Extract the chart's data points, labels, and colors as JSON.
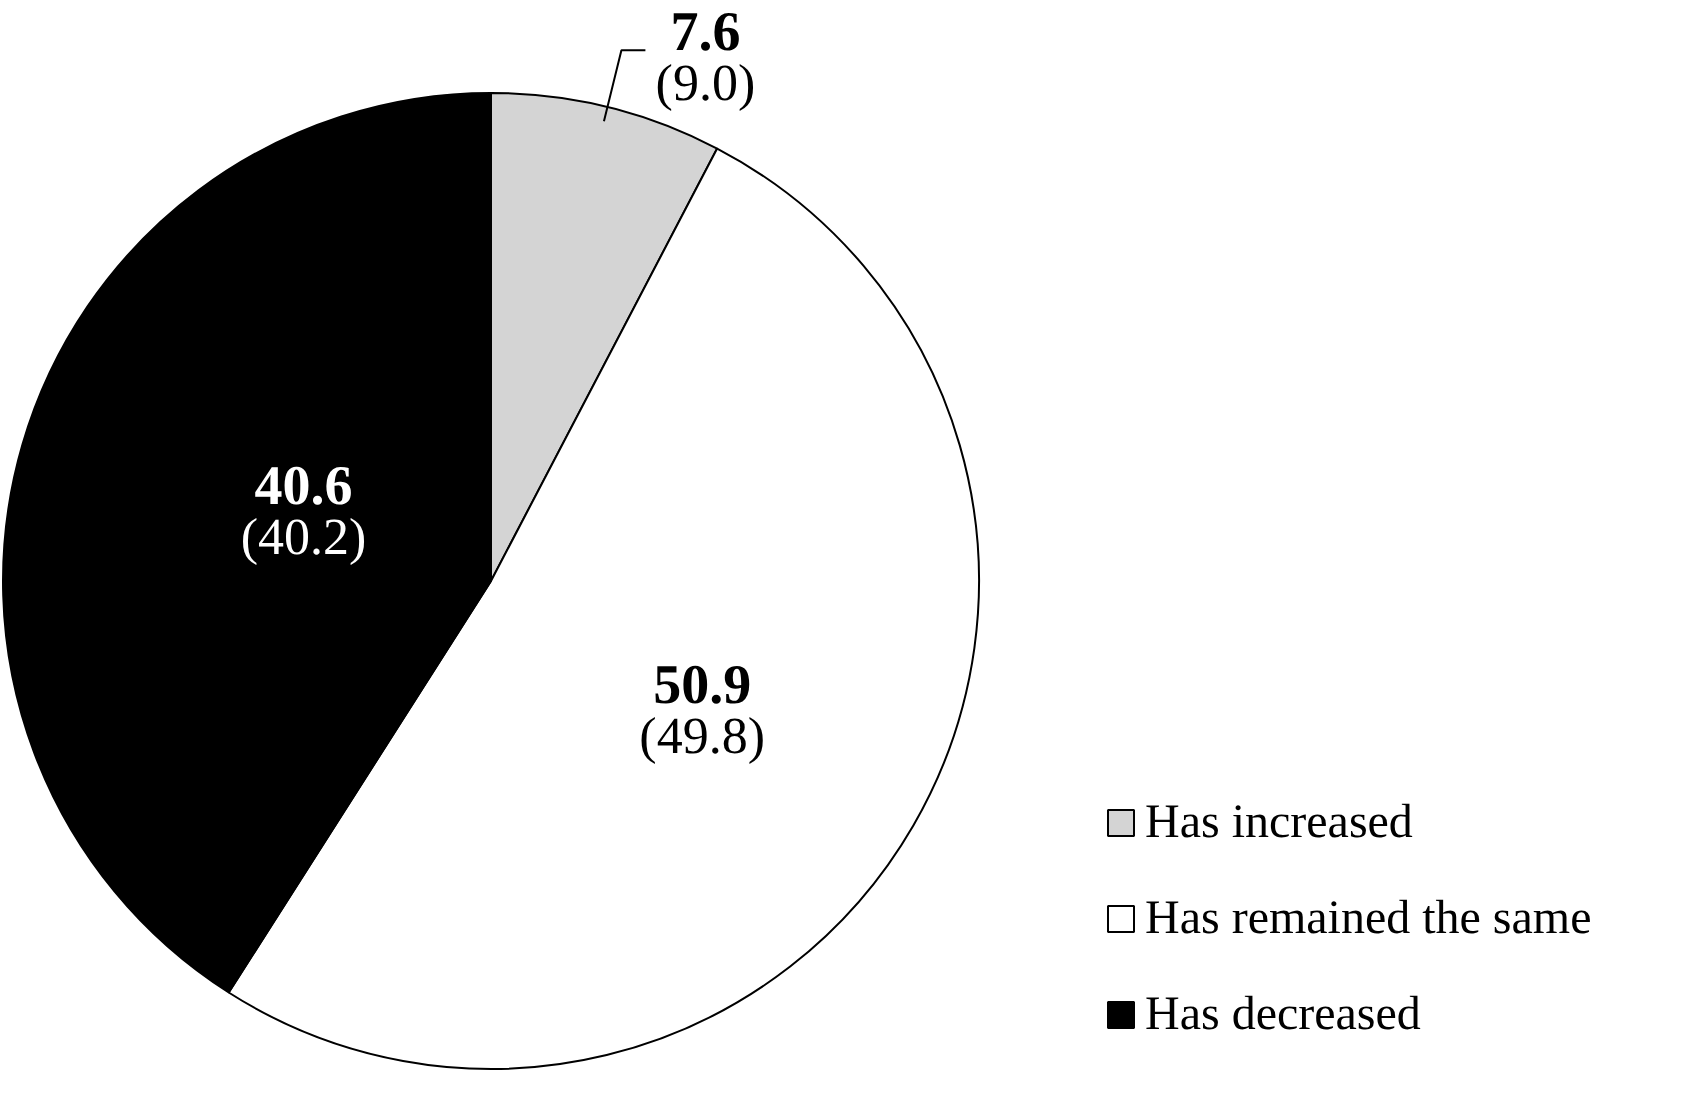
{
  "chart_data": {
    "type": "pie",
    "categories": [
      "Has increased",
      "Has remained the same",
      "Has decreased"
    ],
    "values": [
      7.6,
      50.9,
      40.6
    ],
    "colors": [
      "#d4d4d4",
      "#ffffff",
      "#000000"
    ],
    "data_labels": true,
    "annotations": [
      "(9.0)",
      "(49.8)",
      "(40.2)"
    ],
    "legend": "bottom right"
  }
}
